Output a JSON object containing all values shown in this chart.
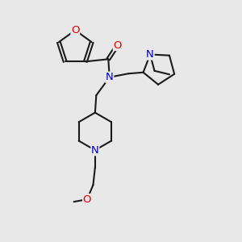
{
  "bg_color": "#e8e8e8",
  "bond_color": "#1a1a1a",
  "bond_width": 1.5,
  "atom_colors": {
    "O": "#dd0000",
    "N": "#0000cc",
    "C": "#1a1a1a"
  },
  "font_size_atom": 9.5,
  "fig_size": [
    3.0,
    3.0
  ],
  "dpi": 100,
  "xlim": [
    0,
    10
  ],
  "ylim": [
    0,
    10
  ]
}
